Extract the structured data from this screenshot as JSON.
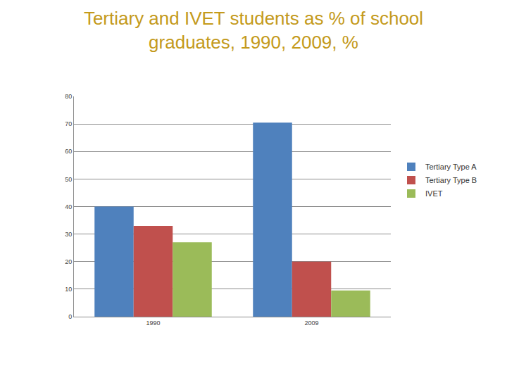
{
  "chart_data": {
    "type": "bar",
    "title": "Tertiary and IVET students as % of school graduates, 1990, 2009, %",
    "categories": [
      "1990",
      "2009"
    ],
    "series": [
      {
        "name": "Tertiary Type A",
        "color": "#4f81bd",
        "values": [
          40,
          70.5
        ]
      },
      {
        "name": "Tertiary Type B",
        "color": "#c0504d",
        "values": [
          33,
          20
        ]
      },
      {
        "name": "IVET",
        "color": "#9bbb59",
        "values": [
          27,
          9.5
        ]
      }
    ],
    "ylim": [
      0,
      80
    ],
    "yticks": [
      0,
      10,
      20,
      30,
      40,
      50,
      60,
      70,
      80
    ],
    "grid": true,
    "legend": "right"
  }
}
